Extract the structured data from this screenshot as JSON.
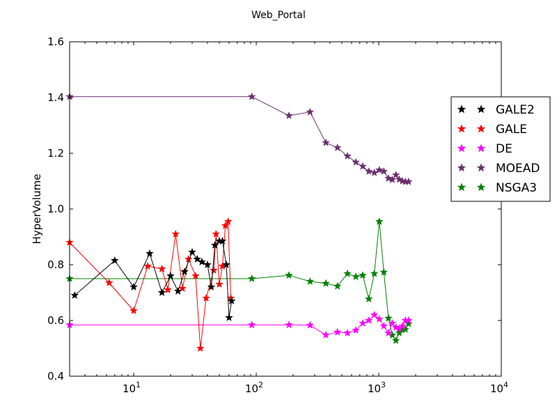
{
  "chart_data": {
    "type": "line",
    "title": "Web_Portal",
    "xlabel": "",
    "ylabel": "HyperVolume",
    "xscale": "log",
    "xlim": [
      3,
      10000
    ],
    "ylim": [
      0.4,
      1.6
    ],
    "xticks": [
      {
        "base": "10",
        "exp": "1",
        "value": 10
      },
      {
        "base": "10",
        "exp": "2",
        "value": 100
      },
      {
        "base": "10",
        "exp": "3",
        "value": 1000
      },
      {
        "base": "10",
        "exp": "4",
        "value": 10000
      }
    ],
    "yticks": [
      "0.4",
      "0.6",
      "0.8",
      "1.0",
      "1.2",
      "1.4",
      "1.6"
    ],
    "legend_position": "right",
    "marker": "star",
    "series": [
      {
        "name": "GALE2",
        "color": "#000000",
        "x": [
          3.3,
          7,
          10,
          13.5,
          17,
          20,
          23,
          26,
          30,
          33,
          36,
          40,
          43,
          46,
          50,
          53,
          57,
          60,
          63
        ],
        "y": [
          0.69,
          0.815,
          0.72,
          0.84,
          0.7,
          0.76,
          0.705,
          0.775,
          0.845,
          0.82,
          0.81,
          0.8,
          0.72,
          0.87,
          0.885,
          0.885,
          0.8,
          0.61,
          0.67
        ]
      },
      {
        "name": "GALE",
        "color": "#ff0000",
        "x": [
          3,
          6.3,
          10,
          13,
          17,
          19,
          22,
          25,
          28,
          32,
          35,
          39,
          45,
          47,
          50,
          53,
          56,
          59,
          62
        ],
        "y": [
          0.88,
          0.735,
          0.635,
          0.795,
          0.785,
          0.71,
          0.91,
          0.715,
          0.82,
          0.76,
          0.5,
          0.68,
          0.78,
          0.91,
          0.73,
          0.795,
          0.94,
          0.955,
          0.68
        ]
      },
      {
        "name": "DE",
        "color": "#ff00ff",
        "x": [
          3,
          92,
          185,
          275,
          370,
          460,
          555,
          650,
          740,
          830,
          920,
          1010,
          1100,
          1200,
          1290,
          1380,
          1470,
          1560,
          1650,
          1750
        ],
        "y": [
          0.584,
          0.584,
          0.584,
          0.583,
          0.548,
          0.558,
          0.555,
          0.565,
          0.59,
          0.6,
          0.62,
          0.605,
          0.58,
          0.555,
          0.59,
          0.575,
          0.57,
          0.58,
          0.6,
          0.6
        ]
      },
      {
        "name": "MOEAD",
        "color": "#6b2f6b",
        "x": [
          3,
          92,
          185,
          275,
          370,
          460,
          555,
          650,
          740,
          830,
          920,
          1010,
          1100,
          1200,
          1290,
          1380,
          1470,
          1560,
          1650,
          1750
        ],
        "y": [
          1.403,
          1.403,
          1.335,
          1.348,
          1.238,
          1.22,
          1.19,
          1.168,
          1.153,
          1.135,
          1.13,
          1.14,
          1.135,
          1.11,
          1.105,
          1.122,
          1.106,
          1.1,
          1.098,
          1.098
        ]
      },
      {
        "name": "NSGA3",
        "color": "#008000",
        "x": [
          3,
          92,
          185,
          275,
          370,
          460,
          555,
          650,
          740,
          830,
          920,
          1010,
          1100,
          1200,
          1290,
          1380,
          1470,
          1560,
          1650,
          1750
        ],
        "y": [
          0.75,
          0.75,
          0.762,
          0.74,
          0.733,
          0.723,
          0.768,
          0.757,
          0.762,
          0.677,
          0.768,
          0.955,
          0.773,
          0.608,
          0.547,
          0.528,
          0.555,
          0.567,
          0.568,
          0.588
        ]
      }
    ]
  }
}
